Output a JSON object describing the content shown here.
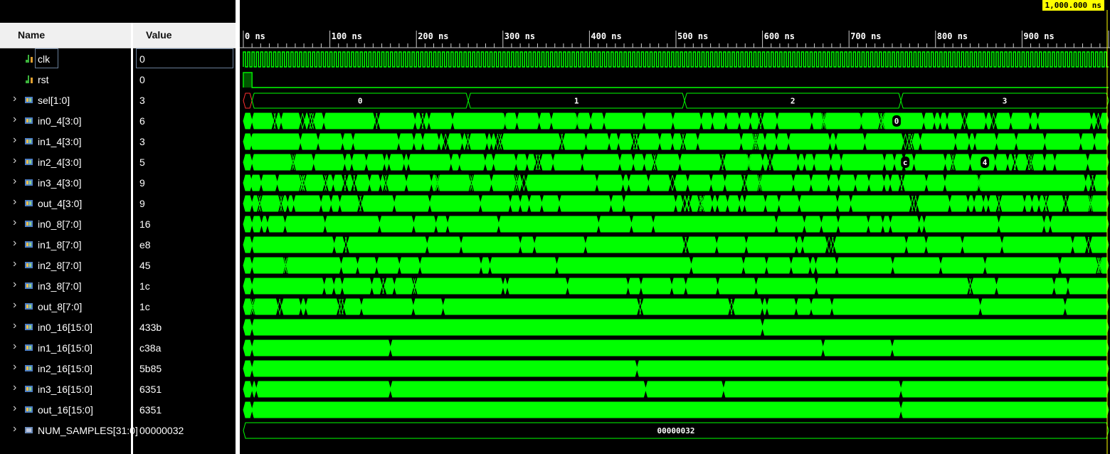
{
  "header": {
    "name_label": "Name",
    "value_label": "Value"
  },
  "cursor": {
    "time_label": "1,000.000 ns"
  },
  "timeline": {
    "max_ns": 1000,
    "tick_labels": [
      "0 ns",
      "100 ns",
      "200 ns",
      "300 ns",
      "400 ns",
      "500 ns",
      "600 ns",
      "700 ns",
      "800 ns",
      "900 ns"
    ]
  },
  "colors": {
    "wave": "#00ff00",
    "background": "#000000",
    "cursor_label": "#ffff00"
  },
  "signals": [
    {
      "name": "clk",
      "value": "0",
      "kind": "bit",
      "expandable": false,
      "icon": "bit-signal-icon",
      "selected": true
    },
    {
      "name": "rst",
      "value": "0",
      "kind": "bit",
      "expandable": false,
      "icon": "bit-signal-icon"
    },
    {
      "name": "sel[1:0]",
      "value": "3",
      "kind": "bus",
      "expandable": true,
      "icon": "bus-signal-icon",
      "segments": [
        "0",
        "1",
        "2",
        "3"
      ]
    },
    {
      "name": "in0_4[3:0]",
      "value": "6",
      "kind": "bus",
      "expandable": true,
      "icon": "bus-signal-icon",
      "shown_values": [
        "0"
      ]
    },
    {
      "name": "in1_4[3:0]",
      "value": "3",
      "kind": "bus",
      "expandable": true,
      "icon": "bus-signal-icon"
    },
    {
      "name": "in2_4[3:0]",
      "value": "5",
      "kind": "bus",
      "expandable": true,
      "icon": "bus-signal-icon",
      "shown_values": [
        "c",
        "4"
      ]
    },
    {
      "name": "in3_4[3:0]",
      "value": "9",
      "kind": "bus",
      "expandable": true,
      "icon": "bus-signal-icon"
    },
    {
      "name": "out_4[3:0]",
      "value": "9",
      "kind": "bus",
      "expandable": true,
      "icon": "bus-signal-icon"
    },
    {
      "name": "in0_8[7:0]",
      "value": "16",
      "kind": "bus",
      "expandable": true,
      "icon": "bus-signal-icon"
    },
    {
      "name": "in1_8[7:0]",
      "value": "e8",
      "kind": "bus",
      "expandable": true,
      "icon": "bus-signal-icon"
    },
    {
      "name": "in2_8[7:0]",
      "value": "45",
      "kind": "bus",
      "expandable": true,
      "icon": "bus-signal-icon"
    },
    {
      "name": "in3_8[7:0]",
      "value": "1c",
      "kind": "bus",
      "expandable": true,
      "icon": "bus-signal-icon"
    },
    {
      "name": "out_8[7:0]",
      "value": "1c",
      "kind": "bus",
      "expandable": true,
      "icon": "bus-signal-icon"
    },
    {
      "name": "in0_16[15:0]",
      "value": "433b",
      "kind": "bus",
      "expandable": true,
      "icon": "bus-signal-icon"
    },
    {
      "name": "in1_16[15:0]",
      "value": "c38a",
      "kind": "bus",
      "expandable": true,
      "icon": "bus-signal-icon"
    },
    {
      "name": "in2_16[15:0]",
      "value": "5b85",
      "kind": "bus",
      "expandable": true,
      "icon": "bus-signal-icon"
    },
    {
      "name": "in3_16[15:0]",
      "value": "6351",
      "kind": "bus",
      "expandable": true,
      "icon": "bus-signal-icon"
    },
    {
      "name": "out_16[15:0]",
      "value": "6351",
      "kind": "bus",
      "expandable": true,
      "icon": "bus-signal-icon"
    },
    {
      "name": "NUM_SAMPLES[31:0]",
      "value": "00000032",
      "kind": "bus",
      "expandable": true,
      "icon": "parameter-icon",
      "segments": [
        "00000032"
      ]
    }
  ]
}
